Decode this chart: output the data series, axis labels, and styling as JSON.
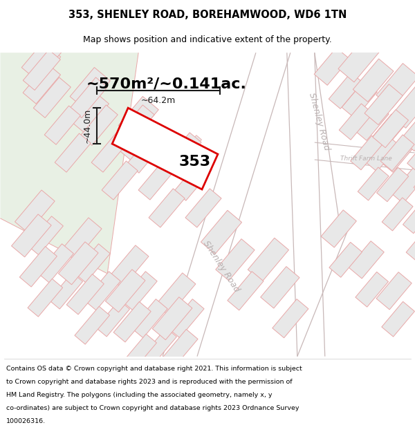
{
  "title_line1": "353, SHENLEY ROAD, BOREHAMWOOD, WD6 1TN",
  "title_line2": "Map shows position and indicative extent of the property.",
  "area_label": "~570m²/~0.141ac.",
  "width_label": "~64.2m",
  "height_label": "~44.0m",
  "property_number": "353",
  "footer_text": "Contains OS data © Crown copyright and database right 2021. This information is subject to Crown copyright and database rights 2023 and is reproduced with the permission of HM Land Registry. The polygons (including the associated geometry, namely x, y co-ordinates) are subject to Crown copyright and database rights 2023 Ordnance Survey 100026316.",
  "bg_color": "#f7f4f0",
  "green_color": "#e8f0e4",
  "map_line_color": "#e8a8a8",
  "building_fill": "#e8e8e8",
  "road_fill": "#ffffff",
  "road_line_color": "#c8b8b8",
  "road_label_color": "#b8b0b0",
  "property_outline_color": "#dd0000",
  "dim_color": "#1a1a1a",
  "white": "#ffffff",
  "title_fontsize": 10.5,
  "subtitle_fontsize": 9,
  "area_fontsize": 16,
  "number_fontsize": 16,
  "dim_fontsize": 9,
  "road_fontsize": 9,
  "footer_fontsize": 6.8
}
